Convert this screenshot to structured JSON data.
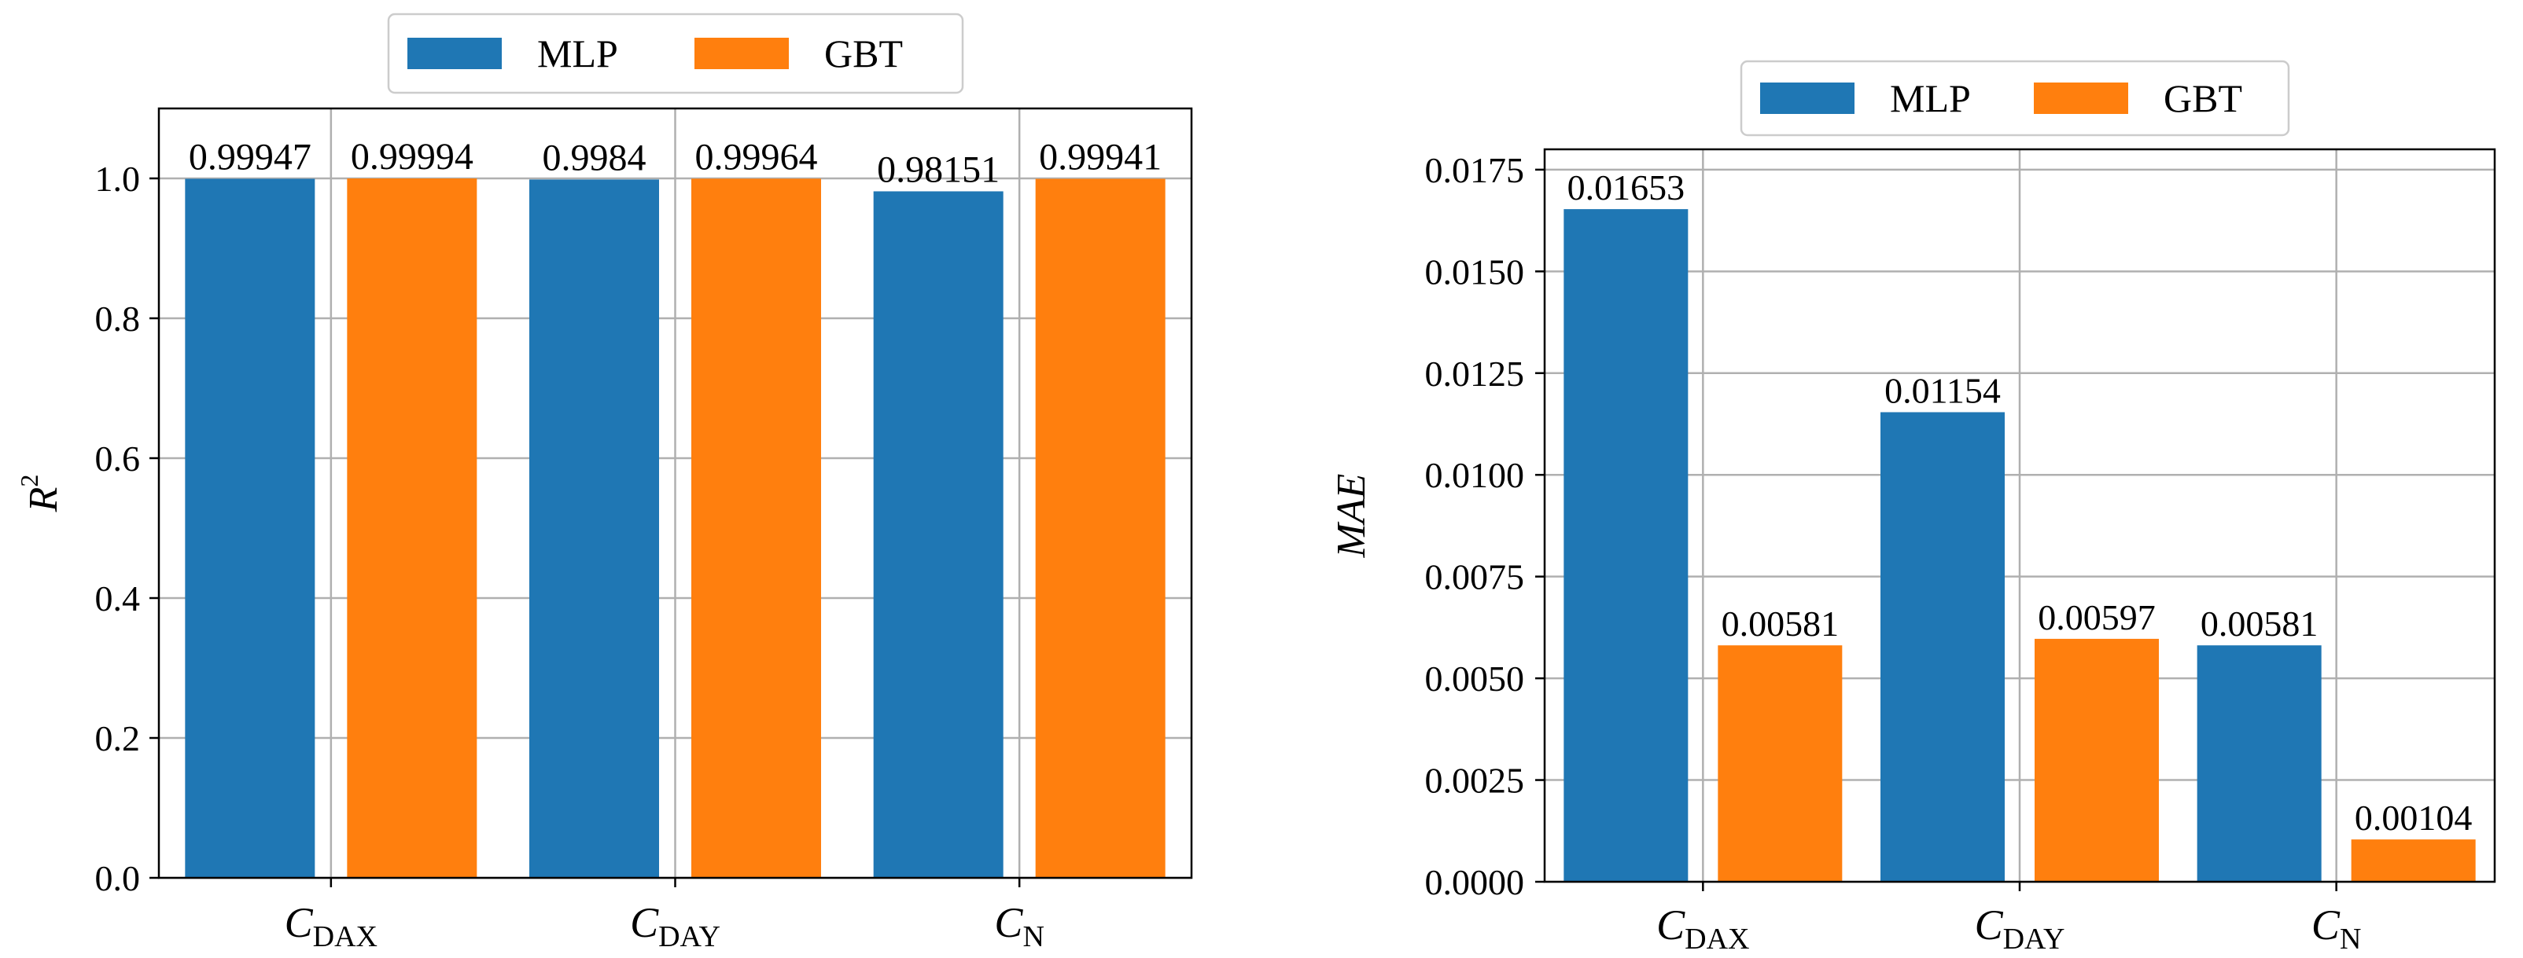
{
  "colors": {
    "mlp": "#1f77b4",
    "gbt": "#ff7f0e",
    "grid": "#b0b0b0",
    "axis": "#000000"
  },
  "chart_data": [
    {
      "type": "bar",
      "ylabel": "R",
      "ylabel_sup": "2",
      "ylim": [
        0,
        1.1
      ],
      "yticks": [
        "0.0",
        "0.2",
        "0.4",
        "0.6",
        "0.8",
        "1.0"
      ],
      "ytick_values": [
        0,
        0.2,
        0.4,
        0.6,
        0.8,
        1.0
      ],
      "grid": true,
      "legend_position": "top-center",
      "categories": [
        {
          "main": "C",
          "sub": "DAX"
        },
        {
          "main": "C",
          "sub": "DAY"
        },
        {
          "main": "C",
          "sub": "N"
        }
      ],
      "series": [
        {
          "name": "MLP",
          "values": [
            0.99947,
            0.9984,
            0.98151
          ],
          "labels": [
            "0.99947",
            "0.9984",
            "0.98151"
          ]
        },
        {
          "name": "GBT",
          "values": [
            0.99994,
            0.99964,
            0.99941
          ],
          "labels": [
            "0.99994",
            "0.99964",
            "0.99941"
          ]
        }
      ]
    },
    {
      "type": "bar",
      "ylabel": "MAE",
      "ylabel_sup": "",
      "ylim": [
        0,
        0.018
      ],
      "yticks": [
        "0.0000",
        "0.0025",
        "0.0050",
        "0.0075",
        "0.0100",
        "0.0125",
        "0.0150",
        "0.0175"
      ],
      "ytick_values": [
        0,
        0.0025,
        0.005,
        0.0075,
        0.01,
        0.0125,
        0.015,
        0.0175
      ],
      "grid": true,
      "legend_position": "top-center",
      "categories": [
        {
          "main": "C",
          "sub": "DAX"
        },
        {
          "main": "C",
          "sub": "DAY"
        },
        {
          "main": "C",
          "sub": "N"
        }
      ],
      "series": [
        {
          "name": "MLP",
          "values": [
            0.01653,
            0.01154,
            0.00581
          ],
          "labels": [
            "0.01653",
            "0.01154",
            "0.00581"
          ]
        },
        {
          "name": "GBT",
          "values": [
            0.00581,
            0.00597,
            0.00104
          ],
          "labels": [
            "0.00581",
            "0.00597",
            "0.00104"
          ]
        }
      ]
    }
  ]
}
